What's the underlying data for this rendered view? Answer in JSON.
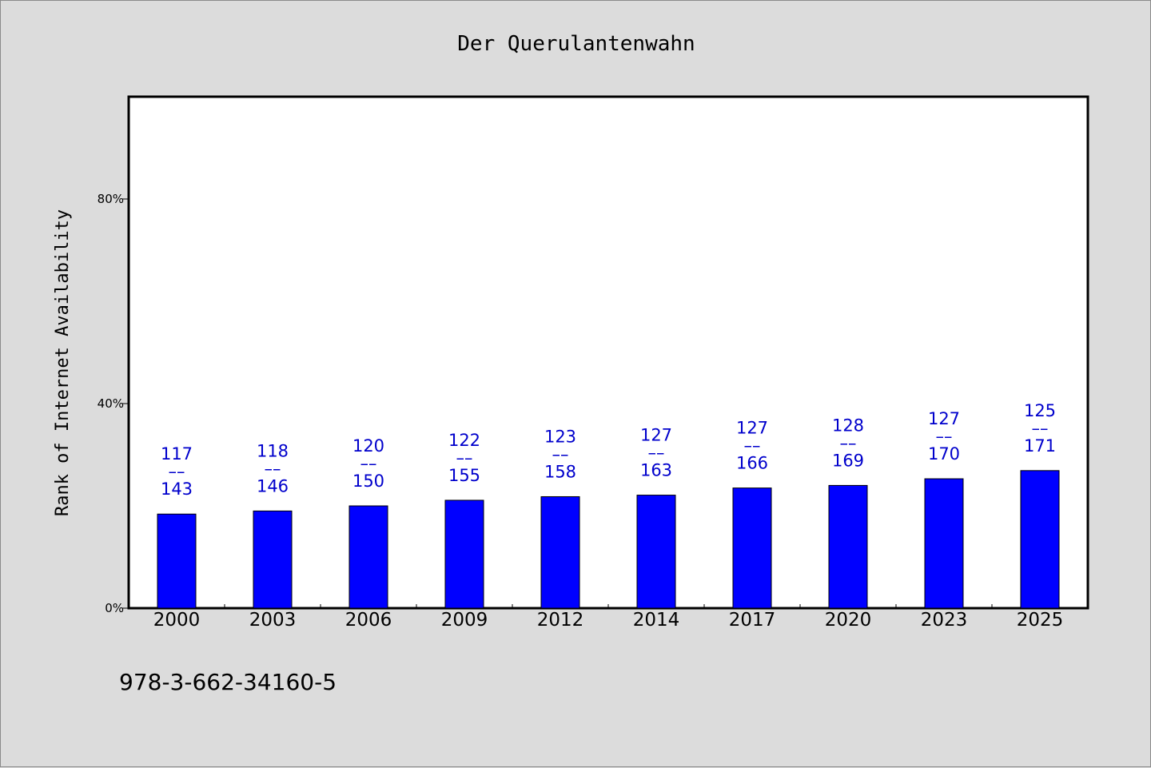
{
  "chart_data": {
    "type": "bar",
    "title": "Der Querulantenwahn",
    "xlabel": "",
    "ylabel": "Rank of Internet Availability",
    "categories": [
      "2000",
      "2003",
      "2006",
      "2009",
      "2012",
      "2014",
      "2017",
      "2020",
      "2023",
      "2025"
    ],
    "values": [
      18.4,
      19.0,
      20.0,
      21.1,
      21.8,
      22.1,
      23.5,
      24.0,
      25.3,
      26.9
    ],
    "data_labels": [
      {
        "top": "117",
        "sep": "––",
        "bottom": "143"
      },
      {
        "top": "118",
        "sep": "––",
        "bottom": "146"
      },
      {
        "top": "120",
        "sep": "––",
        "bottom": "150"
      },
      {
        "top": "122",
        "sep": "––",
        "bottom": "155"
      },
      {
        "top": "123",
        "sep": "––",
        "bottom": "158"
      },
      {
        "top": "127",
        "sep": "––",
        "bottom": "163"
      },
      {
        "top": "127",
        "sep": "––",
        "bottom": "166"
      },
      {
        "top": "128",
        "sep": "––",
        "bottom": "169"
      },
      {
        "top": "127",
        "sep": "––",
        "bottom": "170"
      },
      {
        "top": "125",
        "sep": "––",
        "bottom": "171"
      }
    ],
    "ylim": [
      0,
      100
    ],
    "yticks": [
      0,
      40,
      80
    ],
    "ytick_labels": [
      "0%",
      "40%",
      "80%"
    ],
    "grid": false,
    "bar_color": "#0000ff",
    "label_color": "#0000cc"
  },
  "footer": {
    "text": "978-3-662-34160-5"
  },
  "colors": {
    "background": "#dcdcdc",
    "plot_background": "#ffffff"
  }
}
